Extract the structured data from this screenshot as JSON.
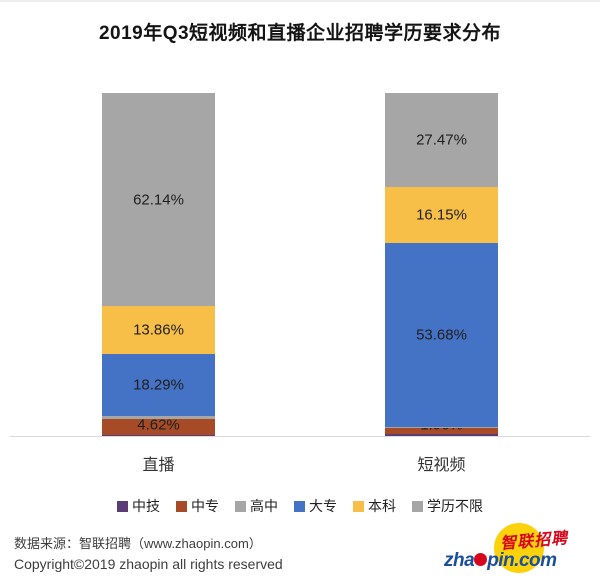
{
  "chart_data": {
    "type": "bar",
    "stacked": true,
    "orientation": "vertical",
    "title": "2019年Q3短视频和直播企业招聘学历要求分布",
    "categories": [
      "直播",
      "短视频"
    ],
    "series": [
      {
        "name": "中技",
        "color": "#5b3c74",
        "values": [
          0.43,
          0.59
        ],
        "labels": [
          "0.43%",
          "0.59%"
        ]
      },
      {
        "name": "中专",
        "color": "#a64b26",
        "values": [
          4.62,
          1.96
        ],
        "labels": [
          "4.62%",
          "1.96%"
        ]
      },
      {
        "name": "高中",
        "color": "#a6a6a6",
        "values": [
          0.66,
          0.15
        ],
        "labels": [
          null,
          null
        ]
      },
      {
        "name": "大专",
        "color": "#4472c4",
        "values": [
          18.29,
          53.68
        ],
        "labels": [
          "18.29%",
          "53.68%"
        ]
      },
      {
        "name": "本科",
        "color": "#f7bf48",
        "values": [
          13.86,
          16.15
        ],
        "labels": [
          "13.86%",
          "16.15%"
        ]
      },
      {
        "name": "学历不限",
        "color": "#a6a6a6",
        "values": [
          62.14,
          27.47
        ],
        "labels": [
          "62.14%",
          "27.47%"
        ]
      }
    ],
    "ylim": [
      0,
      100
    ],
    "grid": false,
    "legend_position": "bottom",
    "axis_line_color": "#d9d9d9"
  },
  "footer": {
    "source_line": "数据来源：智联招聘（www.zhaopin.com）",
    "copyright_line": "Copyright©2019 zhaopin all rights reserved"
  },
  "logo": {
    "brand_cn": "智联招聘",
    "domain_prefix": "zha",
    "domain_suffix": "pin.com",
    "brand_red": "#d6071d",
    "brand_blue": "#1a4f9d",
    "sun_yellow": "#fbd20c"
  }
}
